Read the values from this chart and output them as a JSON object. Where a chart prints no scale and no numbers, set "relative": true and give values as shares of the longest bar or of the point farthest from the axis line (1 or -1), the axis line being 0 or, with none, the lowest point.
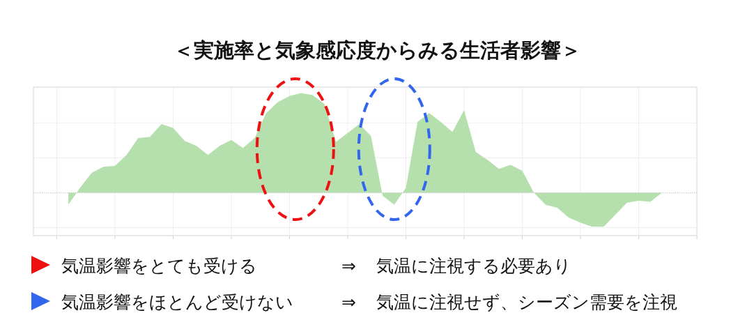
{
  "chart_data": {
    "type": "area",
    "title": "＜実施率と気象感応度からみる生活者影響＞",
    "relative": true,
    "grid": true,
    "ref_lines": [
      {
        "axis": "y",
        "value": 0,
        "color": "#cccccc",
        "line_style": "dotted"
      }
    ],
    "categories": [
      null,
      null,
      null,
      null,
      null,
      null,
      null,
      null,
      null,
      null,
      null,
      null,
      null,
      null,
      null,
      null,
      null,
      null,
      null,
      null,
      null,
      null,
      null,
      null,
      null,
      null,
      null,
      null,
      null,
      null,
      null,
      null,
      null,
      null,
      null,
      null,
      null,
      null,
      null,
      null,
      null,
      null,
      null,
      null,
      null,
      null,
      null,
      null,
      null,
      null,
      null,
      null
    ],
    "series": [
      {
        "color": "#b5e0ad",
        "values": [
          -0.12,
          0.05,
          0.2,
          0.26,
          0.27,
          0.38,
          0.55,
          0.56,
          0.69,
          0.65,
          0.52,
          0.47,
          0.38,
          0.47,
          0.53,
          0.45,
          0.55,
          0.8,
          0.91,
          0.97,
          1,
          0.98,
          0.89,
          0.51,
          0.6,
          0.69,
          0.57,
          -0.03,
          -0.12,
          0.05,
          0.71,
          0.8,
          0.71,
          0.61,
          0.83,
          0.41,
          0.33,
          0.24,
          0.28,
          0.22,
          0,
          -0.12,
          -0.15,
          -0.25,
          -0.3,
          -0.34,
          -0.34,
          -0.22,
          -0.1,
          -0.08,
          -0.09,
          0
        ]
      }
    ],
    "annotations": [
      "気温影響をとても受ける",
      "⇒",
      "気温に注視する必要あり",
      "気温影響をほとんど受けない",
      "⇒",
      "気温に注視せず、シーズン需要を注視"
    ]
  }
}
